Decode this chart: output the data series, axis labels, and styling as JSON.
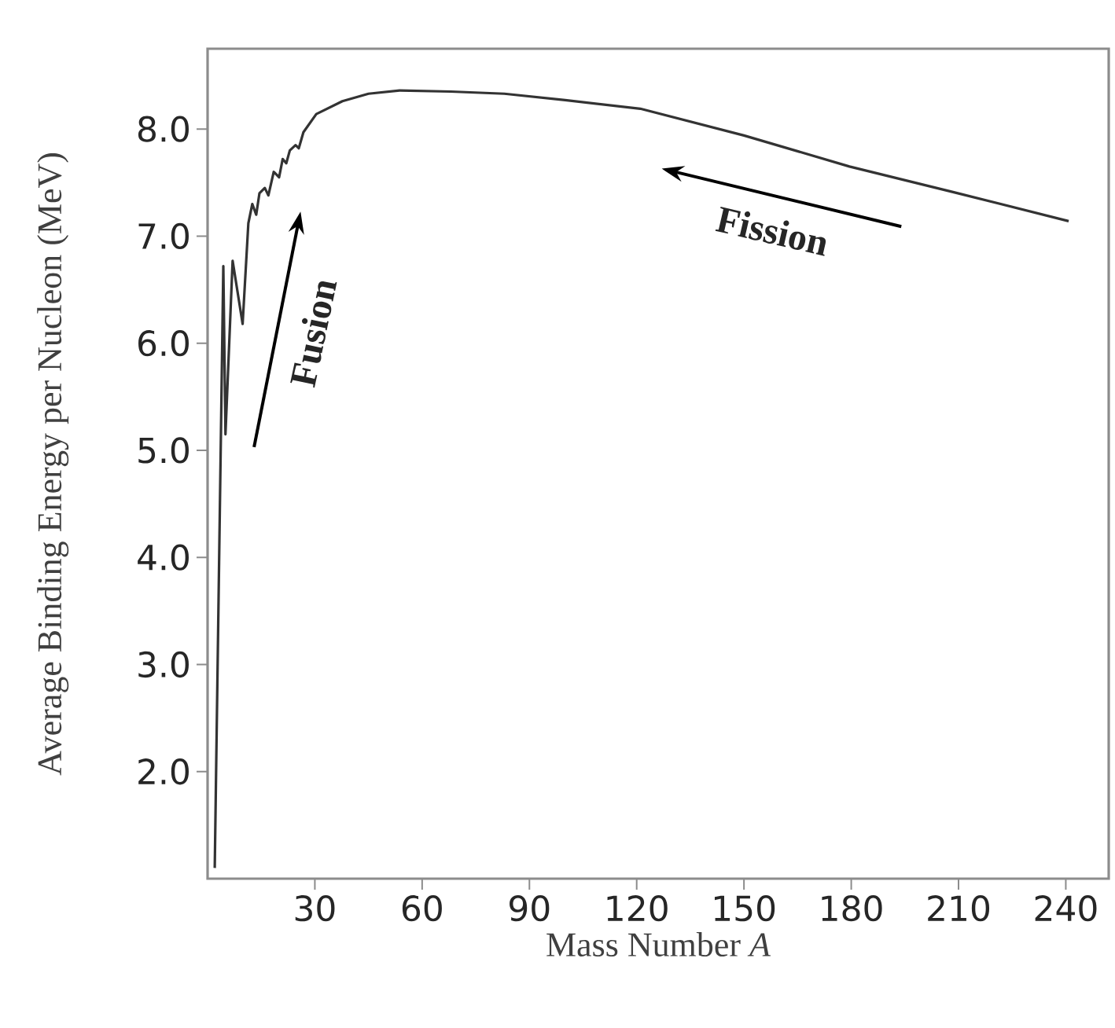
{
  "chart_data": {
    "type": "line",
    "xlabel": "Mass Number *A*",
    "ylabel": "Average Binding Energy per Nucleon (MeV)",
    "x": [
      2,
      4.4,
      5,
      7,
      9.8,
      11.4,
      12.5,
      13.6,
      14.5,
      16,
      17,
      18.5,
      20,
      21,
      22,
      23,
      24.6,
      25.5,
      26.8,
      30.4,
      37.7,
      45,
      53.7,
      68,
      83,
      100,
      121,
      150,
      179.5,
      208.7,
      240.8
    ],
    "series": [
      {
        "color": "#333333",
        "values": [
          1.1,
          6.72,
          5.15,
          6.77,
          6.18,
          7.12,
          7.3,
          7.2,
          7.4,
          7.45,
          7.38,
          7.6,
          7.55,
          7.72,
          7.68,
          7.8,
          7.85,
          7.82,
          7.97,
          8.14,
          8.26,
          8.33,
          8.36,
          8.35,
          8.33,
          8.27,
          8.19,
          7.94,
          7.65,
          7.41,
          7.14
        ]
      }
    ],
    "xlim": [
      0,
      252
    ],
    "ylim": [
      1.0,
      8.75
    ],
    "xticks": [
      30,
      60,
      90,
      120,
      150,
      180,
      210,
      240
    ],
    "yticks": [
      {
        "value": 2,
        "label": "2.0"
      },
      {
        "value": 3,
        "label": "3.0"
      },
      {
        "value": 4,
        "label": "4.0"
      },
      {
        "value": 5,
        "label": "5.0"
      },
      {
        "value": 6,
        "label": "6.0"
      },
      {
        "value": 7,
        "label": "7.0"
      },
      {
        "value": 8,
        "label": "8.0"
      }
    ],
    "annotations": [
      "Fusion",
      "Fission"
    ],
    "grid": false,
    "marker": "none",
    "line_style": "solid"
  }
}
